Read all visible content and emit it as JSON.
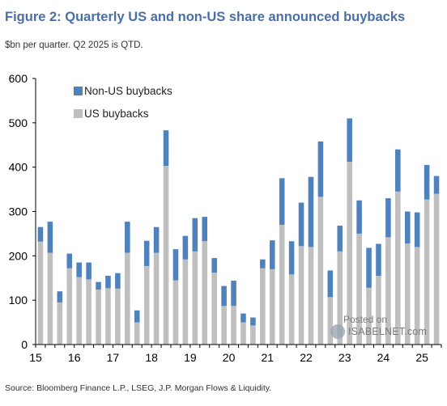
{
  "title": "Figure 2: Quarterly US and non-US share announced buybacks",
  "subtitle": "$bn per quarter. Q2 2025 is QTD.",
  "source": "Source: Bloomberg Finance L.P., LSEG, J.P. Morgan Flows & Liquidity.",
  "watermark": {
    "line1": "Posted on",
    "line2": "ISABELNET.com"
  },
  "colors": {
    "us": "#bfbfbf",
    "non_us": "#4f81bd",
    "axis": "#000000"
  },
  "chart_data": {
    "type": "bar",
    "stacked": true,
    "title": "Figure 2: Quarterly US and non-US share announced buybacks",
    "subtitle": "$bn per quarter. Q2 2025 is QTD.",
    "legend": {
      "position": "top-left",
      "entries": [
        "Non-US buybacks",
        "US buybacks"
      ]
    },
    "ylim": [
      0,
      600
    ],
    "yticks": [
      0,
      100,
      200,
      300,
      400,
      500,
      600
    ],
    "x_tick_labels": [
      "15",
      "16",
      "17",
      "18",
      "19",
      "20",
      "21",
      "22",
      "23",
      "24",
      "25"
    ],
    "x_tick_quarter_index": [
      0,
      4,
      8,
      12,
      16,
      20,
      24,
      28,
      32,
      36,
      40
    ],
    "categories": [
      "Q1 2015",
      "Q2 2015",
      "Q3 2015",
      "Q4 2015",
      "Q1 2016",
      "Q2 2016",
      "Q3 2016",
      "Q4 2016",
      "Q1 2017",
      "Q2 2017",
      "Q3 2017",
      "Q4 2017",
      "Q1 2018",
      "Q2 2018",
      "Q3 2018",
      "Q4 2018",
      "Q1 2019",
      "Q2 2019",
      "Q3 2019",
      "Q4 2019",
      "Q1 2020",
      "Q2 2020",
      "Q3 2020",
      "Q4 2020",
      "Q1 2021",
      "Q2 2021",
      "Q3 2021",
      "Q4 2021",
      "Q1 2022",
      "Q2 2022",
      "Q3 2022",
      "Q4 2022",
      "Q1 2023",
      "Q2 2023",
      "Q3 2023",
      "Q4 2023",
      "Q1 2024",
      "Q2 2024",
      "Q3 2024",
      "Q4 2024",
      "Q1 2025",
      "Q2 2025"
    ],
    "grid": false,
    "series": [
      {
        "name": "US buybacks",
        "color": "#bfbfbf",
        "values": [
          232,
          207,
          95,
          172,
          152,
          147,
          124,
          127,
          126,
          207,
          50,
          177,
          207,
          403,
          145,
          192,
          210,
          233,
          162,
          87,
          87,
          50,
          43,
          172,
          170,
          270,
          158,
          222,
          220,
          333,
          107,
          210,
          412,
          250,
          128,
          155,
          242,
          345,
          228,
          220,
          327,
          340
        ]
      },
      {
        "name": "Non-US buybacks",
        "color": "#4f81bd",
        "values": [
          33,
          70,
          25,
          33,
          33,
          38,
          17,
          28,
          35,
          70,
          27,
          57,
          58,
          80,
          70,
          53,
          75,
          55,
          33,
          45,
          57,
          20,
          18,
          20,
          65,
          105,
          75,
          98,
          158,
          125,
          60,
          58,
          98,
          75,
          90,
          72,
          88,
          95,
          72,
          78,
          78,
          40
        ]
      }
    ]
  }
}
